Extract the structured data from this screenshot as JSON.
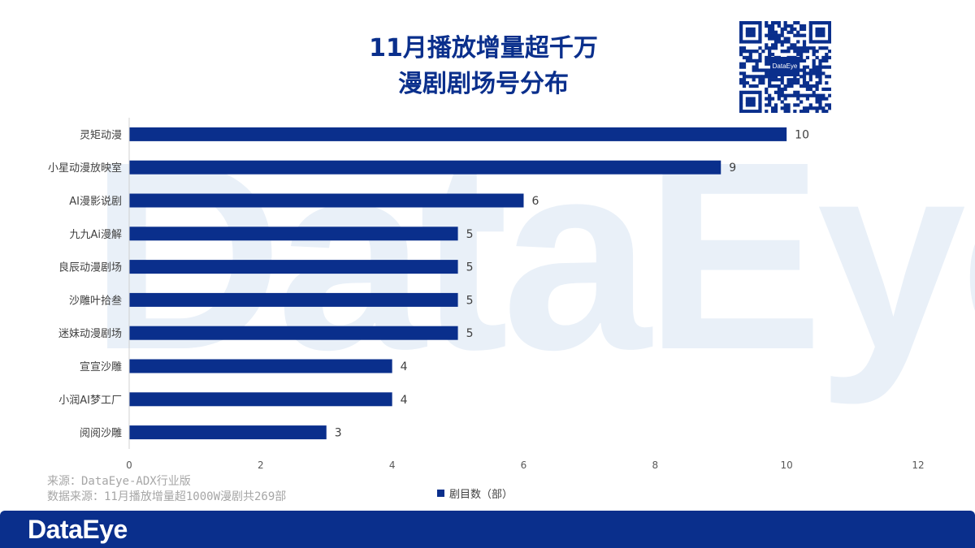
{
  "page": {
    "title_line1": "11月播放增量超千万",
    "title_line2": "漫剧剧场号分布",
    "watermark": "DataEye",
    "qr_label": "DataEye",
    "source_line1": "来源：DataEye-ADX行业版",
    "source_line2": "数据来源：11月播放增量超1000W漫剧共269部",
    "footer_logo": "DataEye"
  },
  "colors": {
    "bar": "#0a2f8c",
    "title": "#0a2f8c",
    "footer": "#0a2f8c"
  },
  "chart_data": {
    "type": "bar",
    "orientation": "horizontal",
    "title": "11月播放增量超千万漫剧剧场号分布",
    "categories": [
      "灵矩动漫",
      "小星动漫放映室",
      "AI漫影说剧",
      "九九Ai漫解",
      "良辰动漫剧场",
      "沙雕叶拾叁",
      "迷妹动漫剧场",
      "宣宣沙雕",
      "小润AI梦工厂",
      "阅阅沙雕"
    ],
    "series": [
      {
        "name": "剧目数（部）",
        "values": [
          10,
          9,
          6,
          5,
          5,
          5,
          5,
          4,
          4,
          3
        ]
      }
    ],
    "xlim": [
      0,
      12
    ],
    "xticks": [
      0,
      2,
      4,
      6,
      8,
      10,
      12
    ],
    "legend": "bottom-center",
    "grid": false
  }
}
